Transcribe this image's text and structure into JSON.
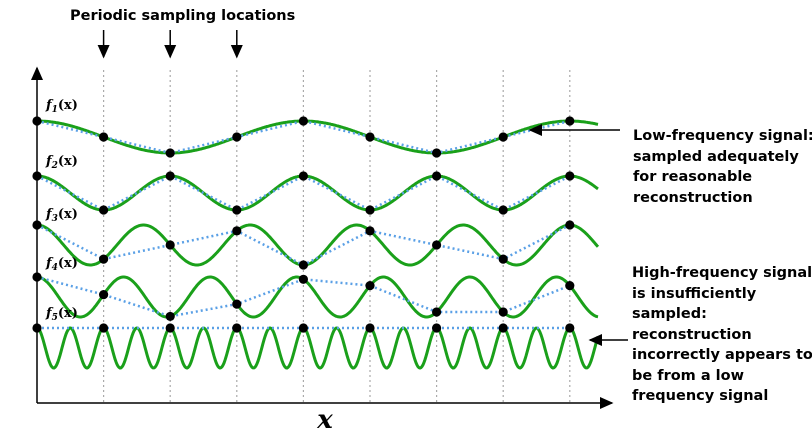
{
  "sampling_label": "Periodic sampling locations",
  "axis": {
    "x_label": "x"
  },
  "function_labels": [
    "f1(x)",
    "f2(x)",
    "f3(x)",
    "f4(x)",
    "f5(x)"
  ],
  "function_label_parts": [
    {
      "name": "f",
      "sub": "1",
      "arg": "(x)"
    },
    {
      "name": "f",
      "sub": "2",
      "arg": "(x)"
    },
    {
      "name": "f",
      "sub": "3",
      "arg": "(x)"
    },
    {
      "name": "f",
      "sub": "4",
      "arg": "(x)"
    },
    {
      "name": "f",
      "sub": "5",
      "arg": "(x)"
    }
  ],
  "notes": {
    "low_frequency": [
      "Low-frequency signal:",
      "sampled adequately",
      "for reasonable",
      "reconstruction"
    ],
    "high_frequency": [
      "High-frequency signal",
      "is insufficiently",
      "sampled:",
      "reconstruction",
      "incorrectly appears to",
      "be from a low",
      "frequency signal"
    ]
  },
  "colors": {
    "signal": "#1aa01a",
    "reconstruction": "#5aa0e6",
    "sample": "#000000",
    "grid": "#aaaaaa"
  },
  "sample_count": 9,
  "signals": [
    {
      "name": "f1",
      "period_in_samples": 4.0,
      "phase": 0.0
    },
    {
      "name": "f2",
      "period_in_samples": 2.0,
      "phase": 0.0
    },
    {
      "name": "f3",
      "period_in_samples": 1.6,
      "phase": 0.0
    },
    {
      "name": "f4",
      "period_in_samples": 1.3,
      "phase": 0.0
    },
    {
      "name": "f5",
      "period_in_samples": 0.5,
      "phase": 0.0
    }
  ]
}
